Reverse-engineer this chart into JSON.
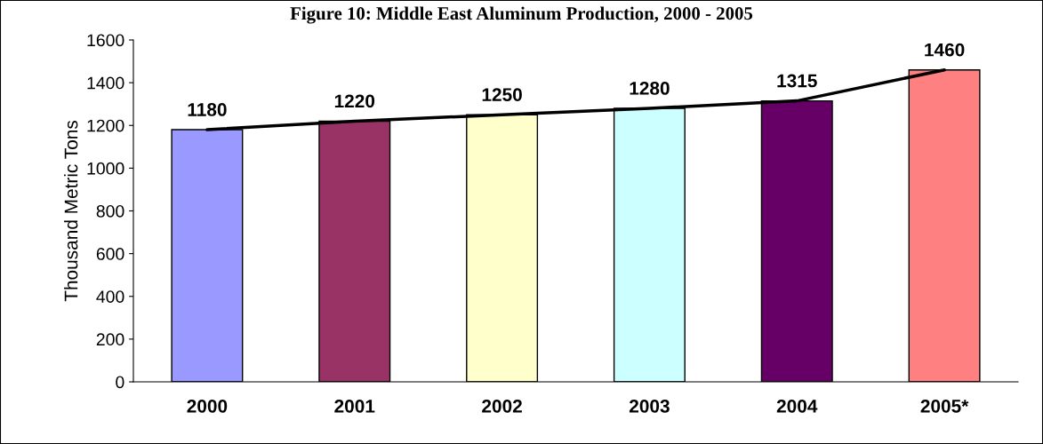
{
  "chart_data": {
    "type": "bar",
    "title": "Figure 10: Middle East Aluminum Production, 2000 - 2005",
    "ylabel": "Thousand Metric Tons",
    "categories": [
      "2000",
      "2001",
      "2002",
      "2003",
      "2004",
      "2005*"
    ],
    "series": [
      {
        "colors": [
          "#9999ff",
          "#993366",
          "#ffffcc",
          "#ccffff",
          "#660066",
          "#ff8080"
        ],
        "values": [
          1180,
          1220,
          1250,
          1280,
          1315,
          1460
        ],
        "value_labels": [
          "1180",
          "1220",
          "1250",
          "1280",
          "1315",
          "1460"
        ]
      },
      {
        "type": "line",
        "color": "#000000",
        "values": [
          1180,
          1220,
          1250,
          1280,
          1315,
          1460
        ]
      }
    ],
    "ylim": [
      0,
      1600
    ],
    "yticks": [
      0,
      200,
      400,
      600,
      800,
      1000,
      1200,
      1400,
      1600
    ],
    "grid": false,
    "legend": false,
    "marker": "none",
    "line_style": "solid"
  }
}
